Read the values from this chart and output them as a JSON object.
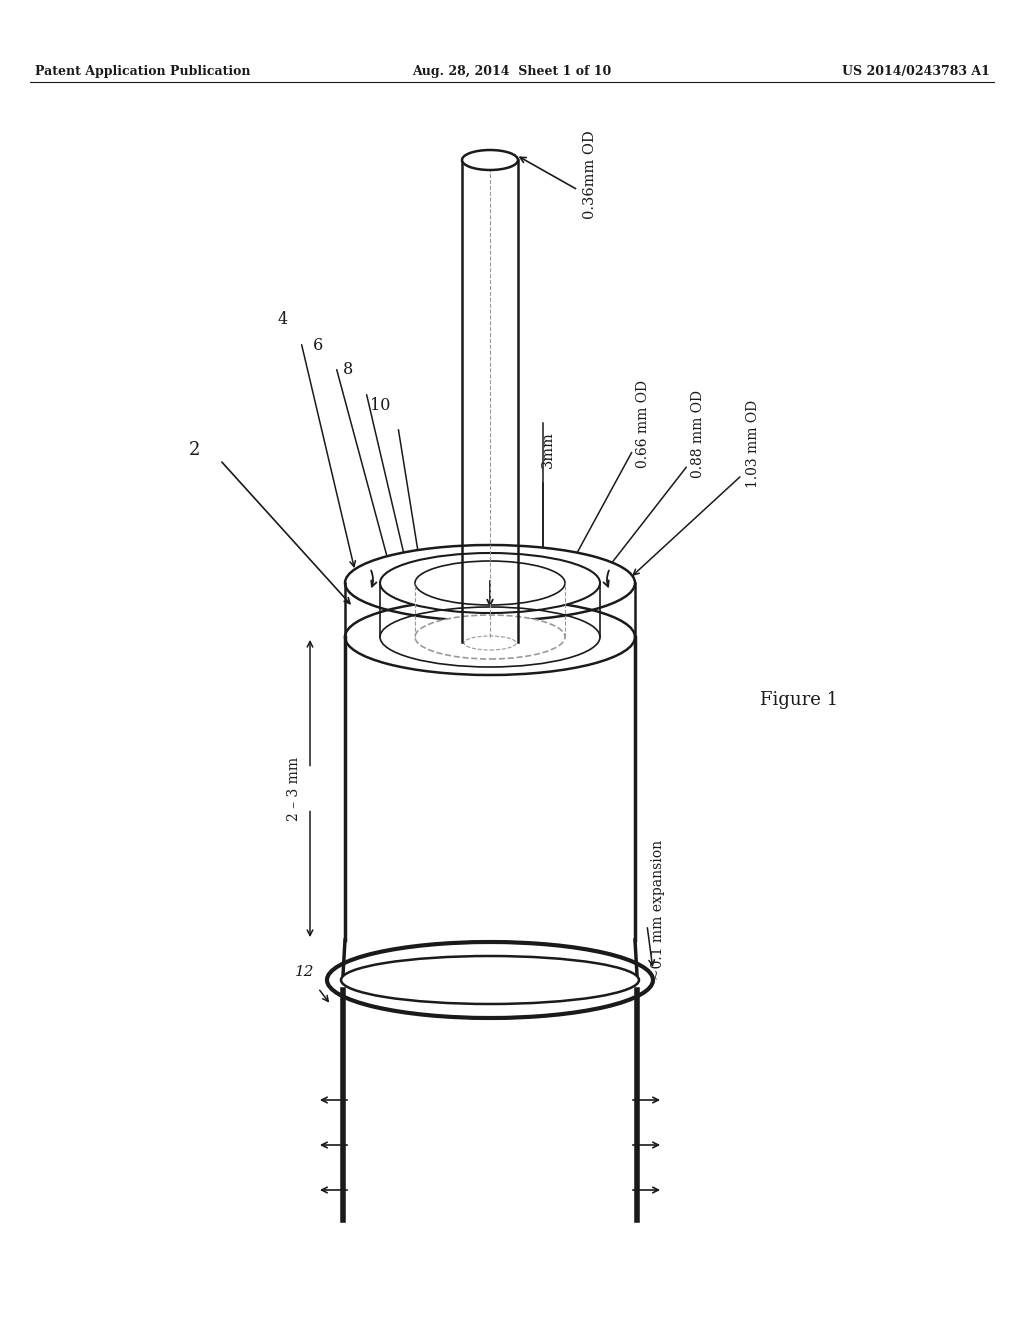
{
  "header_left": "Patent Application Publication",
  "header_mid": "Aug. 28, 2014  Sheet 1 of 10",
  "header_right": "US 2014/0243783 A1",
  "figure_label": "Figure 1",
  "bg_color": "#ffffff",
  "line_color": "#1a1a1a",
  "gray_color": "#999999",
  "annotations": {
    "od_top": "0.36mm OD",
    "label_4": "4",
    "label_6": "6",
    "label_8": "8",
    "label_10": "10",
    "label_2": "2",
    "label_12": "12",
    "dim_3mm": "3mm",
    "od_066": "0.66 mm OD",
    "od_088": "0.88 mm OD",
    "od_103": "1.03 mm OD",
    "dim_23mm": "2 – 3 mm",
    "expansion": "~0.1 mm expansion"
  }
}
